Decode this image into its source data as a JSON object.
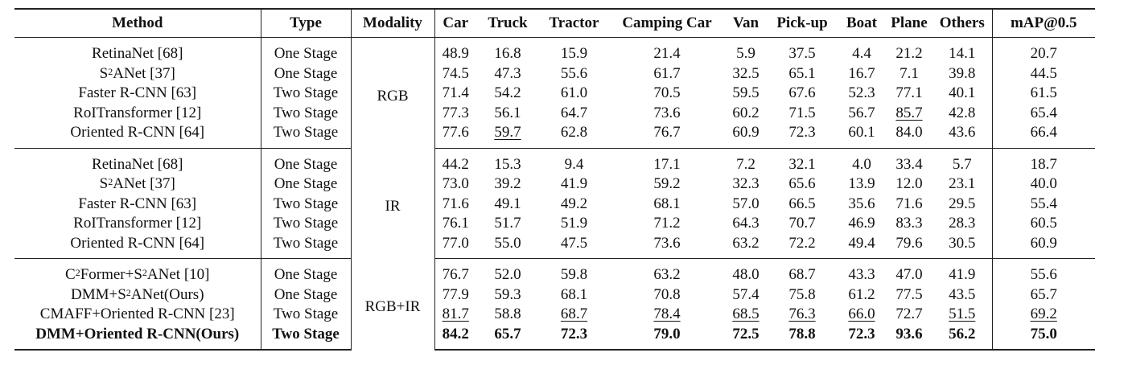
{
  "headers": [
    "Method",
    "Type",
    "Modality",
    "Car",
    "Truck",
    "Tractor",
    "Camping Car",
    "Van",
    "Pick-up",
    "Boat",
    "Plane",
    "Others",
    "mAP@0.5"
  ],
  "groups": [
    {
      "modality": "RGB",
      "rows": [
        {
          "method": "RetinaNet [68]",
          "type": "One Stage",
          "values": [
            "48.9",
            "16.8",
            "15.9",
            "21.4",
            "5.9",
            "37.5",
            "4.4",
            "21.2",
            "14.1"
          ],
          "map": "20.7"
        },
        {
          "method": "S<sup>2</sup>ANet [37]",
          "type": "One Stage",
          "values": [
            "74.5",
            "47.3",
            "55.6",
            "61.7",
            "32.5",
            "65.1",
            "16.7",
            "7.1",
            "39.8"
          ],
          "map": "44.5"
        },
        {
          "method": "Faster R-CNN [63]",
          "type": "Two Stage",
          "values": [
            "71.4",
            "54.2",
            "61.0",
            "70.5",
            "59.5",
            "67.6",
            "52.3",
            "77.1",
            "40.1"
          ],
          "map": "61.5"
        },
        {
          "method": "RoITransformer [12]",
          "type": "Two Stage",
          "values": [
            "77.3",
            "56.1",
            "64.7",
            "73.6",
            "60.2",
            "71.5",
            "56.7",
            "85.7",
            "42.8"
          ],
          "map": "65.4",
          "underline": [
            7
          ]
        },
        {
          "method": "Oriented R-CNN [64]",
          "type": "Two Stage",
          "values": [
            "77.6",
            "59.7",
            "62.8",
            "76.7",
            "60.9",
            "72.3",
            "60.1",
            "84.0",
            "43.6"
          ],
          "map": "66.4",
          "underline": [
            1
          ]
        }
      ]
    },
    {
      "modality": "IR",
      "rows": [
        {
          "method": "RetinaNet [68]",
          "type": "One Stage",
          "values": [
            "44.2",
            "15.3",
            "9.4",
            "17.1",
            "7.2",
            "32.1",
            "4.0",
            "33.4",
            "5.7"
          ],
          "map": "18.7"
        },
        {
          "method": "S<sup>2</sup>ANet [37]",
          "type": "One Stage",
          "values": [
            "73.0",
            "39.2",
            "41.9",
            "59.2",
            "32.3",
            "65.6",
            "13.9",
            "12.0",
            "23.1"
          ],
          "map": "40.0"
        },
        {
          "method": "Faster R-CNN [63]",
          "type": "Two Stage",
          "values": [
            "71.6",
            "49.1",
            "49.2",
            "68.1",
            "57.0",
            "66.5",
            "35.6",
            "71.6",
            "29.5"
          ],
          "map": "55.4"
        },
        {
          "method": "RoITransformer [12]",
          "type": "Two Stage",
          "values": [
            "76.1",
            "51.7",
            "51.9",
            "71.2",
            "64.3",
            "70.7",
            "46.9",
            "83.3",
            "28.3"
          ],
          "map": "60.5"
        },
        {
          "method": "Oriented R-CNN [64]",
          "type": "Two Stage",
          "values": [
            "77.0",
            "55.0",
            "47.5",
            "73.6",
            "63.2",
            "72.2",
            "49.4",
            "79.6",
            "30.5"
          ],
          "map": "60.9"
        }
      ]
    },
    {
      "modality": "RGB+IR",
      "rows": [
        {
          "method": "C<sup>2</sup>Former+S<sup>2</sup>ANet [10]",
          "type": "One Stage",
          "values": [
            "76.7",
            "52.0",
            "59.8",
            "63.2",
            "48.0",
            "68.7",
            "43.3",
            "47.0",
            "41.9"
          ],
          "map": "55.6"
        },
        {
          "method": "DMM+S<sup>2</sup>ANet(Ours)",
          "type": "One Stage",
          "values": [
            "77.9",
            "59.3",
            "68.1",
            "70.8",
            "57.4",
            "75.8",
            "61.2",
            "77.5",
            "43.5"
          ],
          "map": "65.7"
        },
        {
          "method": "CMAFF+Oriented R-CNN [23]",
          "type": "Two Stage",
          "values": [
            "81.7",
            "58.8",
            "68.7",
            "78.4",
            "68.5",
            "76.3",
            "66.0",
            "72.7",
            "51.5"
          ],
          "map": "69.2",
          "underline": [
            0,
            2,
            3,
            4,
            5,
            6,
            8,
            9
          ]
        },
        {
          "method": "DMM+Oriented R-CNN(Ours)",
          "type": "Two Stage",
          "values": [
            "84.2",
            "65.7",
            "72.3",
            "79.0",
            "72.5",
            "78.8",
            "72.3",
            "93.6",
            "56.2"
          ],
          "map": "75.0",
          "bold": true
        }
      ]
    }
  ]
}
